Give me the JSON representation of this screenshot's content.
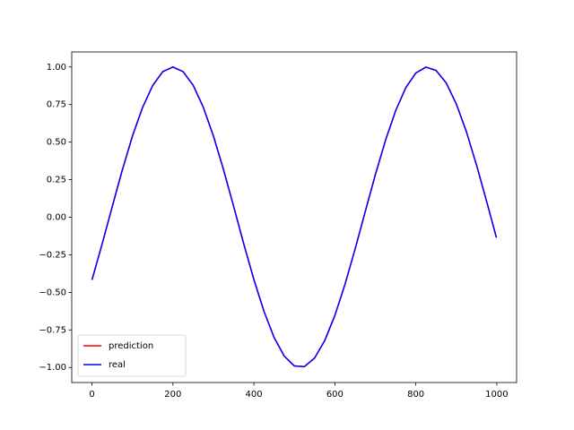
{
  "chart_data": {
    "type": "line",
    "x": [
      0,
      25,
      50,
      75,
      100,
      125,
      150,
      175,
      200,
      225,
      250,
      275,
      300,
      325,
      350,
      375,
      400,
      425,
      450,
      475,
      500,
      525,
      550,
      575,
      600,
      625,
      650,
      675,
      700,
      725,
      750,
      775,
      800,
      825,
      850,
      875,
      900,
      925,
      950,
      975,
      999
    ],
    "series": [
      {
        "name": "prediction",
        "color": "#ff0000",
        "values": [
          -0.417,
          -0.179,
          0.07,
          0.315,
          0.54,
          0.731,
          0.877,
          0.969,
          1.0,
          0.969,
          0.878,
          0.732,
          0.541,
          0.316,
          0.072,
          -0.178,
          -0.415,
          -0.627,
          -0.801,
          -0.924,
          -0.99,
          -0.994,
          -0.937,
          -0.821,
          -0.654,
          -0.447,
          -0.212,
          0.037,
          0.283,
          0.511,
          0.708,
          0.861,
          0.96,
          0.999,
          0.977,
          0.894,
          0.754,
          0.569,
          0.347,
          0.105,
          -0.135
        ]
      },
      {
        "name": "real",
        "color": "#0000ff",
        "values": [
          -0.417,
          -0.179,
          0.07,
          0.315,
          0.54,
          0.731,
          0.877,
          0.969,
          1.0,
          0.969,
          0.878,
          0.732,
          0.541,
          0.316,
          0.072,
          -0.178,
          -0.415,
          -0.627,
          -0.801,
          -0.924,
          -0.99,
          -0.994,
          -0.937,
          -0.821,
          -0.654,
          -0.447,
          -0.212,
          0.037,
          0.283,
          0.511,
          0.708,
          0.861,
          0.96,
          0.999,
          0.977,
          0.894,
          0.754,
          0.569,
          0.347,
          0.105,
          -0.135
        ]
      }
    ],
    "xlim": [
      -49.95,
      1048.95
    ],
    "ylim": [
      -1.1,
      1.1
    ],
    "xticks": [
      0,
      200,
      400,
      600,
      800,
      1000
    ],
    "yticks": [
      {
        "value": -1,
        "label": "−1.00"
      },
      {
        "value": -0.75,
        "label": "−0.75"
      },
      {
        "value": -0.5,
        "label": "−0.50"
      },
      {
        "value": -0.25,
        "label": "−0.25"
      },
      {
        "value": 0,
        "label": "0.00"
      },
      {
        "value": 0.25,
        "label": "0.25"
      },
      {
        "value": 0.5,
        "label": "0.50"
      },
      {
        "value": 0.75,
        "label": "0.75"
      },
      {
        "value": 1,
        "label": "1.00"
      }
    ],
    "legend": "lower left"
  }
}
